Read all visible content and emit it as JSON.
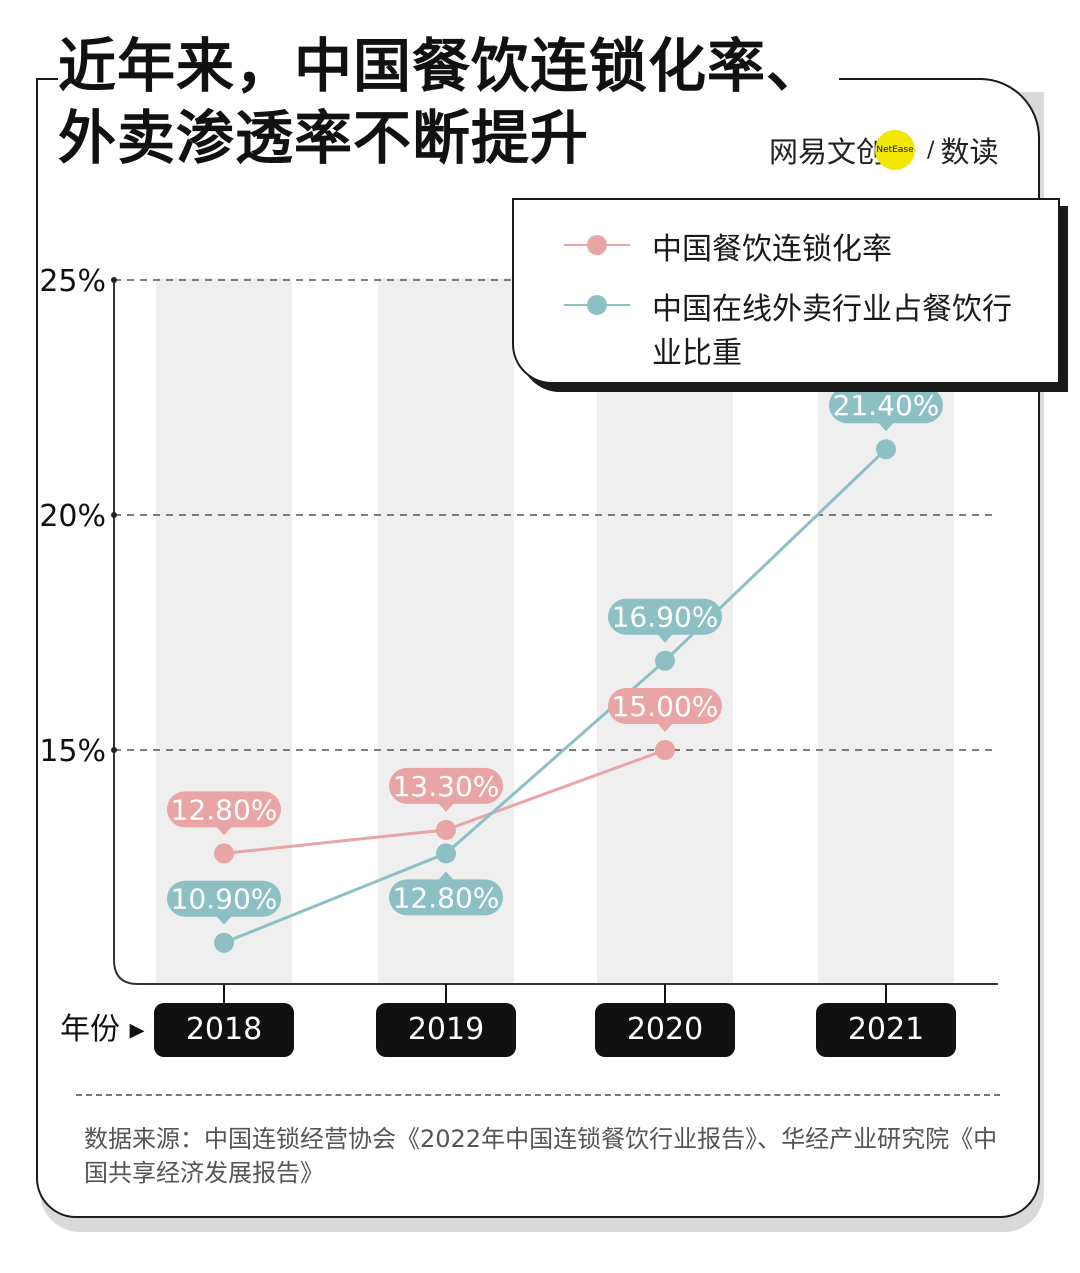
{
  "title_lines": [
    "近年来，中国餐饮连锁化率、",
    "外卖渗透率不断提升"
  ],
  "brand": {
    "name": "网易文创",
    "dot_text": "NetEase",
    "section": "数读"
  },
  "legend": [
    {
      "label": "中国餐饮连锁化率",
      "color": "#e9a4a6"
    },
    {
      "label": "中国在线外卖行业占餐饮行业比重",
      "color": "#8dc0c4"
    }
  ],
  "xaxis_title": "年份",
  "source": "数据来源：中国连锁经营协会《2022年中国连锁餐饮行业报告》、华经产业研究院《中国共享经济发展报告》",
  "chart_data": {
    "type": "line",
    "x": [
      "2018",
      "2019",
      "2020",
      "2021"
    ],
    "yticks": [
      "15%",
      "20%",
      "25%"
    ],
    "ylim": [
      10,
      25
    ],
    "grid": "dashed-horizontal",
    "legend_position": "top-right",
    "series": [
      {
        "name": "中国餐饮连锁化率",
        "color": "#e9a4a6",
        "label_color": "#e9a4a6",
        "values": [
          12.8,
          13.3,
          15.0,
          null
        ],
        "labels": [
          "12.80%",
          "13.30%",
          "15.00%",
          ""
        ],
        "label_side": [
          "above",
          "above",
          "above",
          "above"
        ]
      },
      {
        "name": "中国在线外卖行业占餐饮行业比重",
        "color": "#8dc0c4",
        "label_color": "#8dc0c4",
        "values": [
          10.9,
          12.8,
          16.9,
          21.4
        ],
        "labels": [
          "10.90%",
          "12.80%",
          "16.90%",
          "21.40%"
        ],
        "label_side": [
          "above",
          "below",
          "above",
          "above"
        ]
      }
    ]
  }
}
